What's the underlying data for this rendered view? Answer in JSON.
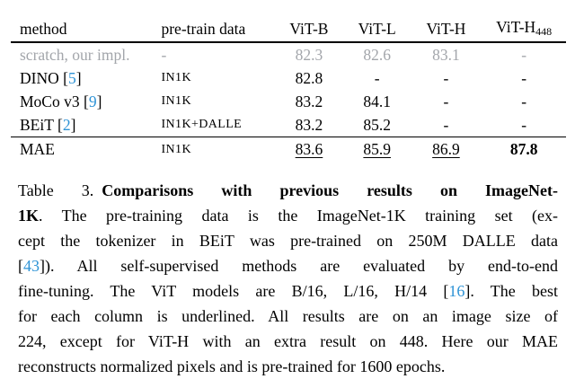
{
  "colors": {
    "citation_blue": "#2e93d6",
    "muted_gray": "#a3a6ab",
    "text": "#000000",
    "background": "#ffffff"
  },
  "table": {
    "headers": {
      "method": "method",
      "pretrain": "pre-train data",
      "vitb": "ViT-B",
      "vitl": "ViT-L",
      "vith": "ViT-H",
      "vith448_base": "ViT-H",
      "vith448_sub": "448"
    },
    "rows": [
      {
        "method_pre": "scratch, our impl.",
        "cite": "",
        "method_post": "",
        "pretrain": "-",
        "vitb": "82.3",
        "vitl": "82.6",
        "vith": "83.1",
        "vith448": "-"
      },
      {
        "method_pre": "DINO [",
        "cite": "5",
        "method_post": "]",
        "pretrain": "IN1K",
        "vitb": "82.8",
        "vitl": "-",
        "vith": "-",
        "vith448": "-"
      },
      {
        "method_pre": "MoCo v3 [",
        "cite": "9",
        "method_post": "]",
        "pretrain": "IN1K",
        "vitb": "83.2",
        "vitl": "84.1",
        "vith": "-",
        "vith448": "-"
      },
      {
        "method_pre": "BEiT [",
        "cite": "2",
        "method_post": "]",
        "pretrain": "IN1K+DALLE",
        "vitb": "83.2",
        "vitl": "85.2",
        "vith": "-",
        "vith448": "-"
      },
      {
        "method_pre": "MAE",
        "cite": "",
        "method_post": "",
        "pretrain": "IN1K",
        "vitb": "83.6",
        "vitl": "85.9",
        "vith": "86.9",
        "vith448": "87.8"
      }
    ]
  },
  "chart_data": {
    "type": "table",
    "title": "Comparisons with previous results on ImageNet-1K",
    "categories": [
      "ViT-B",
      "ViT-L",
      "ViT-H",
      "ViT-H448"
    ],
    "series": [
      {
        "name": "scratch, our impl.",
        "pretrain": "-",
        "values": [
          82.3,
          82.6,
          83.1,
          null
        ]
      },
      {
        "name": "DINO [5]",
        "pretrain": "IN1K",
        "values": [
          82.8,
          null,
          null,
          null
        ]
      },
      {
        "name": "MoCo v3 [9]",
        "pretrain": "IN1K",
        "values": [
          83.2,
          84.1,
          null,
          null
        ]
      },
      {
        "name": "BEiT [2]",
        "pretrain": "IN1K+DALLE",
        "values": [
          83.2,
          85.2,
          null,
          null
        ]
      },
      {
        "name": "MAE",
        "pretrain": "IN1K",
        "values": [
          83.6,
          85.9,
          86.9,
          87.8
        ]
      }
    ]
  },
  "caption": {
    "label": "Table 3.",
    "l1_bold": "Comparisons with previous results on ImageNet-",
    "l2_bold": "1K",
    "l2_rest": ". The pre-training data is the ImageNet-1K training set (ex-",
    "l3": "cept the tokenizer in BEiT was pre-trained on 250M DALLE data",
    "l4_open": "[",
    "l4_cite": "43",
    "l4_rest": "]). All self-supervised methods are evaluated by end-to-end",
    "l5_a": "fine-tuning. The ViT models are B/16, L/16, H/14 [",
    "l5_cite": "16",
    "l5_b": "]. The best",
    "l6": "for each column is underlined. All results are on an image size of",
    "l7": "224, except for ViT-H with an extra result on 448. Here our MAE",
    "l8": "reconstructs normalized pixels and is pre-trained for 1600 epochs."
  }
}
